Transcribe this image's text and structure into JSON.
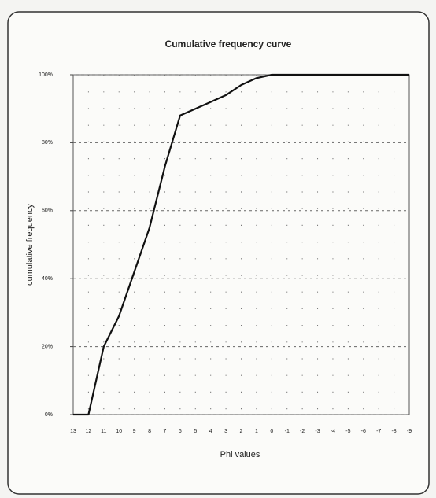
{
  "chart_data": {
    "type": "line",
    "title": "Cumulative frequency curve",
    "x_label": "Phi values",
    "y_label": "cumulative frequency",
    "categories": [
      "13",
      "12",
      "11",
      "10",
      "9",
      "8",
      "7",
      "6",
      "5",
      "4",
      "3",
      "2",
      "1",
      "0",
      "-1",
      "-2",
      "-3",
      "-4",
      "-5",
      "-6",
      "-7",
      "-8",
      "-9"
    ],
    "series": [
      {
        "name": "cumulative frequency",
        "color": "#111111",
        "values": [
          0,
          0,
          20,
          29,
          42,
          55,
          73,
          88,
          90,
          92,
          94,
          97,
          99,
          100,
          100,
          100,
          100,
          100,
          100,
          100,
          100,
          100,
          100
        ]
      }
    ],
    "ylim": [
      0,
      100
    ],
    "yticks": [
      {
        "value": 0,
        "label": "0%"
      },
      {
        "value": 20,
        "label": "20%"
      },
      {
        "value": 40,
        "label": "40%"
      },
      {
        "value": 60,
        "label": "60%"
      },
      {
        "value": 80,
        "label": "80%"
      },
      {
        "value": 100,
        "label": "100%"
      }
    ],
    "grid": true
  }
}
